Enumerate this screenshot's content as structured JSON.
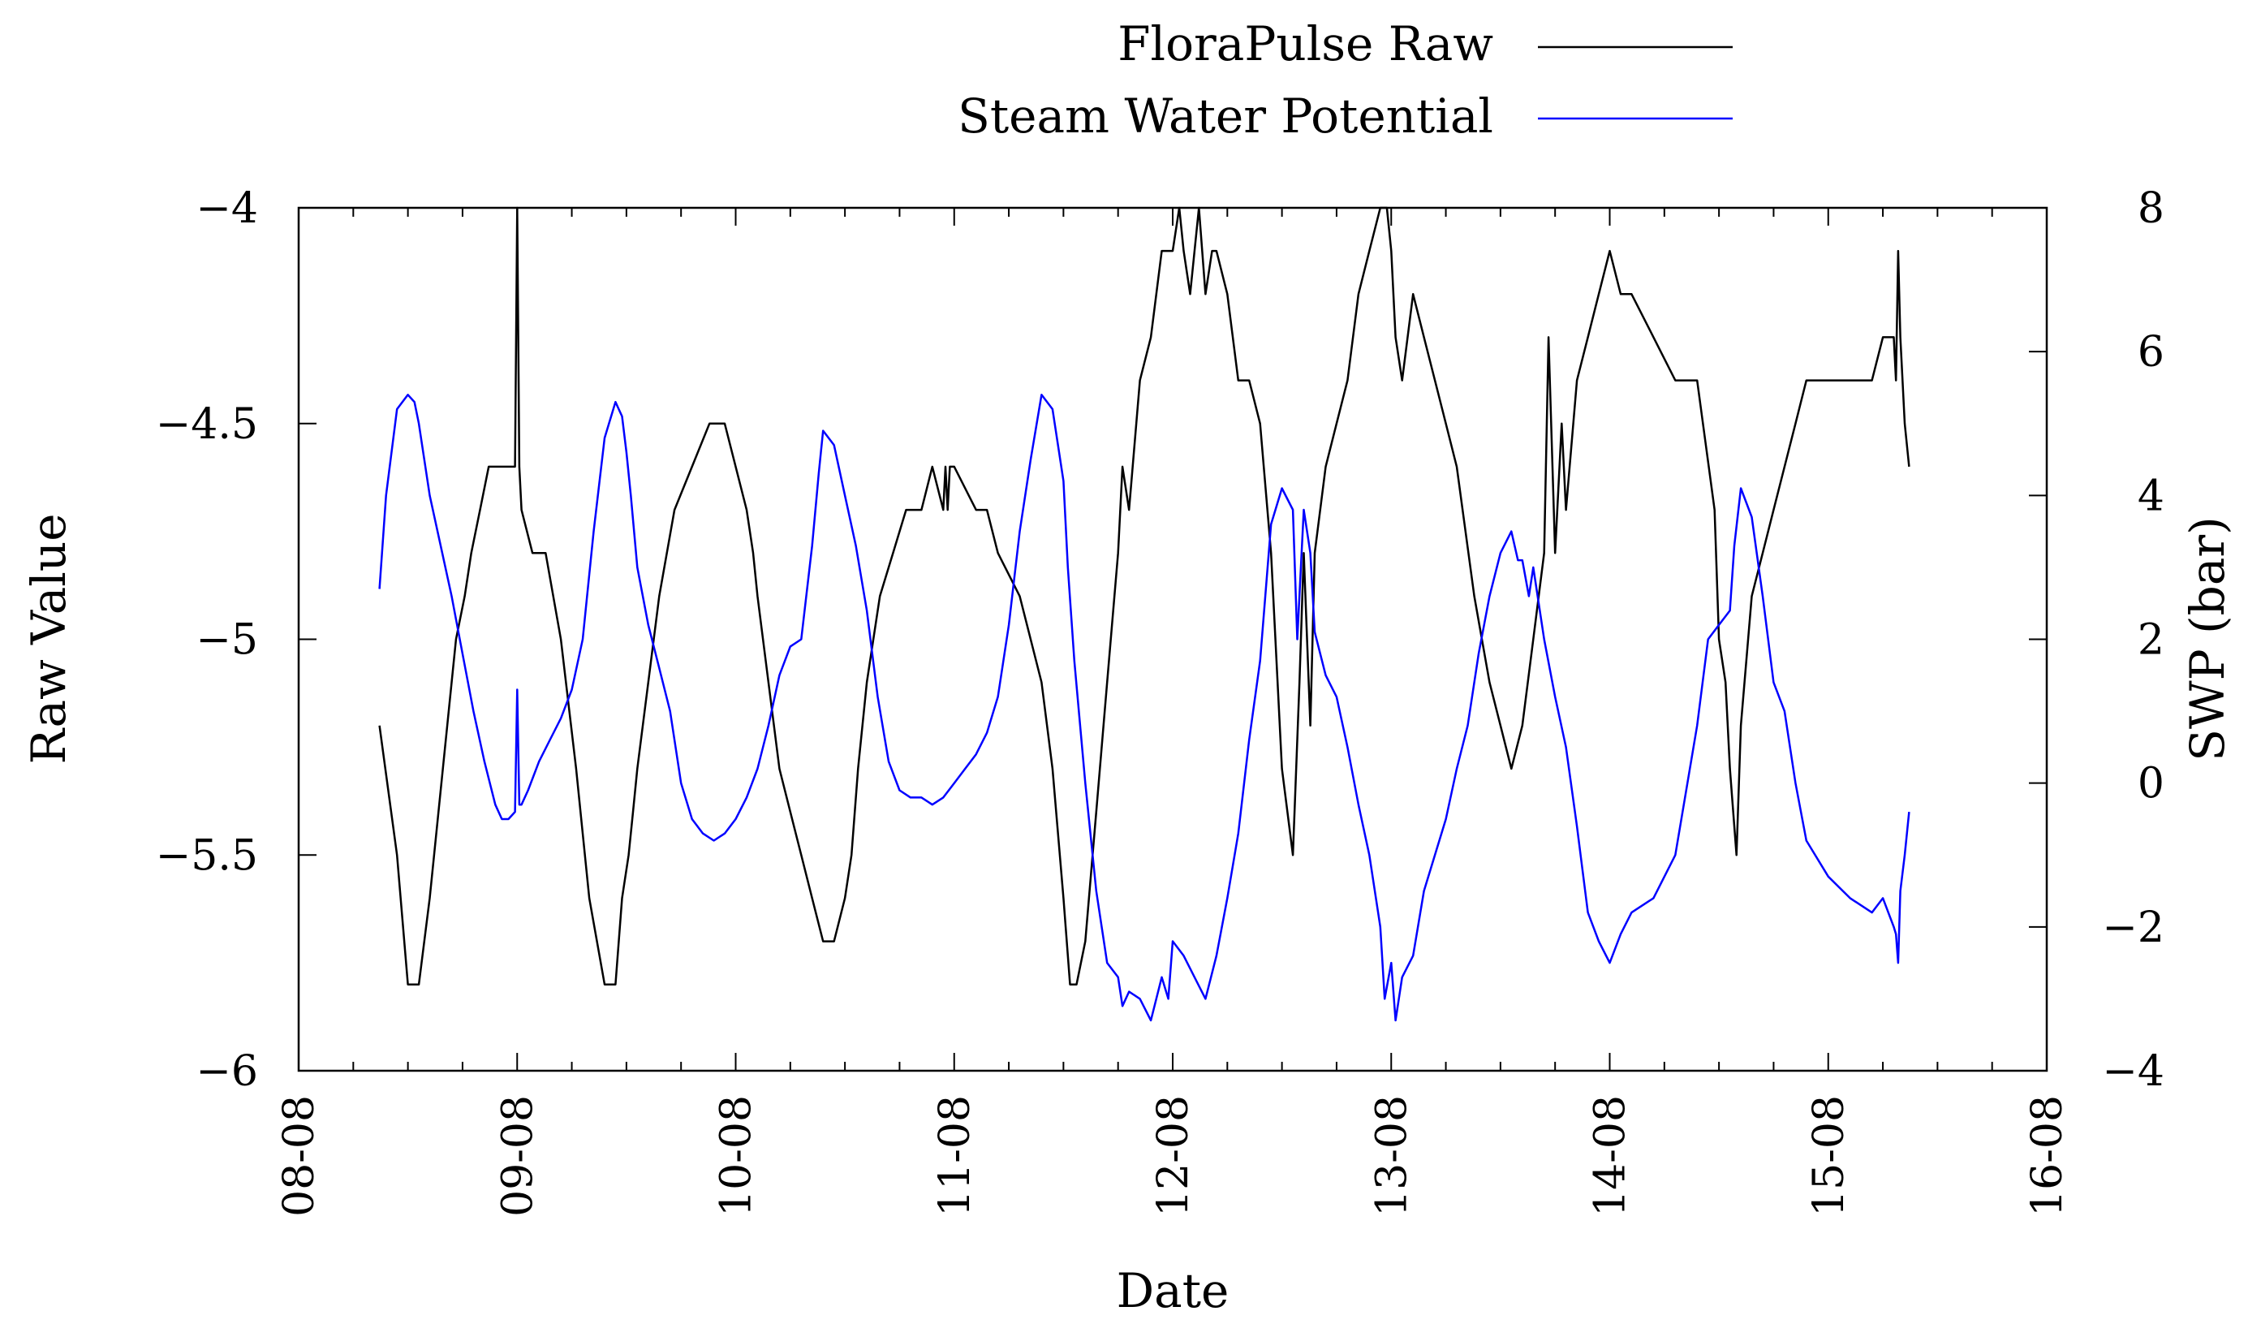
{
  "chart_data": {
    "type": "line",
    "title": "",
    "xlabel": "Date",
    "ylabel_left": "Raw Value",
    "ylabel_right": "SWP (bar)",
    "xlim": [
      0,
      8
    ],
    "ylim_left": [
      -6,
      -4
    ],
    "ylim_right": [
      -4,
      8
    ],
    "x_ticks": [
      {
        "value": 0,
        "label": "08-08"
      },
      {
        "value": 1,
        "label": "09-08"
      },
      {
        "value": 2,
        "label": "10-08"
      },
      {
        "value": 3,
        "label": "11-08"
      },
      {
        "value": 4,
        "label": "12-08"
      },
      {
        "value": 5,
        "label": "13-08"
      },
      {
        "value": 6,
        "label": "14-08"
      },
      {
        "value": 7,
        "label": "15-08"
      },
      {
        "value": 8,
        "label": "16-08"
      }
    ],
    "y_ticks_left": [
      {
        "value": -4,
        "label": "−4"
      },
      {
        "value": -4.5,
        "label": "−4.5"
      },
      {
        "value": -5,
        "label": "−5"
      },
      {
        "value": -5.5,
        "label": "−5.5"
      },
      {
        "value": -6,
        "label": "−6"
      }
    ],
    "y_ticks_right": [
      {
        "value": 8,
        "label": "8"
      },
      {
        "value": 6,
        "label": "6"
      },
      {
        "value": 4,
        "label": "4"
      },
      {
        "value": 2,
        "label": "2"
      },
      {
        "value": 0,
        "label": "0"
      },
      {
        "value": -2,
        "label": "−2"
      },
      {
        "value": -4,
        "label": "−4"
      }
    ],
    "legend_position": "top-center",
    "series": [
      {
        "name": "FloraPulse Raw",
        "axis": "left",
        "color": "#000000",
        "x": [
          0.37,
          0.45,
          0.5,
          0.55,
          0.6,
          0.66,
          0.7,
          0.72,
          0.76,
          0.79,
          0.83,
          0.87,
          0.9,
          0.95,
          0.99,
          1.0,
          1.01,
          1.02,
          1.07,
          1.13,
          1.2,
          1.27,
          1.33,
          1.4,
          1.45,
          1.48,
          1.51,
          1.53,
          1.55,
          1.6,
          1.65,
          1.72,
          1.8,
          1.88,
          1.95,
          2.0,
          2.05,
          2.08,
          2.1,
          2.15,
          2.2,
          2.25,
          2.3,
          2.35,
          2.4,
          2.45,
          2.5,
          2.53,
          2.56,
          2.6,
          2.66,
          2.72,
          2.78,
          2.85,
          2.9,
          2.95,
          2.96,
          2.97,
          2.98,
          2.99,
          3.0,
          3.1,
          3.15,
          3.2,
          3.3,
          3.4,
          3.45,
          3.5,
          3.53,
          3.56,
          3.6,
          3.65,
          3.7,
          3.75,
          3.77,
          3.8,
          3.85,
          3.9,
          3.95,
          4.0,
          4.03,
          4.05,
          4.08,
          4.1,
          4.12,
          4.15,
          4.18,
          4.2,
          4.25,
          4.3,
          4.35,
          4.4,
          4.45,
          4.5,
          4.55,
          4.58,
          4.6,
          4.63,
          4.65,
          4.7,
          4.75,
          4.8,
          4.85,
          4.9,
          4.95,
          4.98,
          5.0,
          5.02,
          5.05,
          5.1,
          5.15,
          5.2,
          5.25,
          5.3,
          5.38,
          5.45,
          5.5,
          5.55,
          5.6,
          5.65,
          5.7,
          5.72,
          5.75,
          5.78,
          5.8,
          5.85,
          5.9,
          5.95,
          6.0,
          6.05,
          6.1,
          6.2,
          6.3,
          6.4,
          6.48,
          6.5,
          6.53,
          6.55,
          6.58,
          6.6,
          6.65,
          6.7,
          6.75,
          6.8,
          6.85,
          6.9,
          7.0,
          7.1,
          7.2,
          7.25,
          7.3,
          7.31,
          7.32,
          7.33,
          7.35,
          7.37
        ],
        "values": [
          -5.2,
          -5.5,
          -5.8,
          -5.8,
          -5.6,
          -5.3,
          -5.1,
          -5.0,
          -4.9,
          -4.8,
          -4.7,
          -4.6,
          -4.6,
          -4.6,
          -4.6,
          -4.0,
          -4.6,
          -4.7,
          -4.8,
          -4.8,
          -5.0,
          -5.3,
          -5.6,
          -5.8,
          -5.8,
          -5.6,
          -5.5,
          -5.4,
          -5.3,
          -5.1,
          -4.9,
          -4.7,
          -4.6,
          -4.5,
          -4.5,
          -4.6,
          -4.7,
          -4.8,
          -4.9,
          -5.1,
          -5.3,
          -5.4,
          -5.5,
          -5.6,
          -5.7,
          -5.7,
          -5.6,
          -5.5,
          -5.3,
          -5.1,
          -4.9,
          -4.8,
          -4.7,
          -4.7,
          -4.6,
          -4.7,
          -4.6,
          -4.7,
          -4.6,
          -4.6,
          -4.6,
          -4.7,
          -4.7,
          -4.8,
          -4.9,
          -5.1,
          -5.3,
          -5.6,
          -5.8,
          -5.8,
          -5.7,
          -5.4,
          -5.1,
          -4.8,
          -4.6,
          -4.7,
          -4.4,
          -4.3,
          -4.1,
          -4.1,
          -4.0,
          -4.1,
          -4.2,
          -4.1,
          -4.0,
          -4.2,
          -4.1,
          -4.1,
          -4.2,
          -4.4,
          -4.4,
          -4.5,
          -4.8,
          -5.3,
          -5.5,
          -5.1,
          -4.8,
          -5.2,
          -4.8,
          -4.6,
          -4.5,
          -4.4,
          -4.2,
          -4.1,
          -4.0,
          -4.0,
          -4.1,
          -4.3,
          -4.4,
          -4.2,
          -4.3,
          -4.4,
          -4.5,
          -4.6,
          -4.9,
          -5.1,
          -5.2,
          -5.3,
          -5.2,
          -5.0,
          -4.8,
          -4.3,
          -4.8,
          -4.5,
          -4.7,
          -4.4,
          -4.3,
          -4.2,
          -4.1,
          -4.2,
          -4.2,
          -4.3,
          -4.4,
          -4.4,
          -4.7,
          -5.0,
          -5.1,
          -5.3,
          -5.5,
          -5.2,
          -4.9,
          -4.8,
          -4.7,
          -4.6,
          -4.5,
          -4.4,
          -4.4,
          -4.4,
          -4.4,
          -4.3,
          -4.3,
          -4.4,
          -4.1,
          -4.3,
          -4.5,
          -4.6
        ]
      },
      {
        "name": "Steam Water Potential",
        "axis": "right",
        "color": "#0000ff",
        "x": [
          0.37,
          0.4,
          0.45,
          0.5,
          0.53,
          0.55,
          0.6,
          0.65,
          0.7,
          0.75,
          0.8,
          0.85,
          0.9,
          0.93,
          0.96,
          0.99,
          1.0,
          1.01,
          1.02,
          1.05,
          1.1,
          1.15,
          1.2,
          1.25,
          1.3,
          1.35,
          1.4,
          1.45,
          1.48,
          1.5,
          1.52,
          1.55,
          1.6,
          1.65,
          1.7,
          1.75,
          1.8,
          1.85,
          1.9,
          1.95,
          2.0,
          2.05,
          2.1,
          2.15,
          2.2,
          2.25,
          2.3,
          2.35,
          2.38,
          2.4,
          2.45,
          2.5,
          2.55,
          2.6,
          2.65,
          2.7,
          2.75,
          2.8,
          2.85,
          2.9,
          2.95,
          3.0,
          3.05,
          3.1,
          3.15,
          3.2,
          3.25,
          3.3,
          3.35,
          3.4,
          3.45,
          3.5,
          3.52,
          3.55,
          3.6,
          3.65,
          3.7,
          3.75,
          3.77,
          3.8,
          3.85,
          3.9,
          3.95,
          3.98,
          4.0,
          4.05,
          4.1,
          4.15,
          4.2,
          4.25,
          4.3,
          4.35,
          4.4,
          4.45,
          4.5,
          4.55,
          4.57,
          4.6,
          4.63,
          4.65,
          4.7,
          4.75,
          4.8,
          4.85,
          4.9,
          4.95,
          4.97,
          5.0,
          5.02,
          5.05,
          5.1,
          5.15,
          5.2,
          5.25,
          5.3,
          5.35,
          5.4,
          5.45,
          5.5,
          5.55,
          5.58,
          5.6,
          5.63,
          5.65,
          5.7,
          5.75,
          5.8,
          5.85,
          5.9,
          5.95,
          6.0,
          6.05,
          6.1,
          6.2,
          6.3,
          6.4,
          6.45,
          6.5,
          6.55,
          6.57,
          6.6,
          6.65,
          6.7,
          6.75,
          6.8,
          6.85,
          6.9,
          7.0,
          7.1,
          7.2,
          7.25,
          7.3,
          7.31,
          7.32,
          7.33,
          7.35,
          7.37
        ],
        "values": [
          2.7,
          4.0,
          5.2,
          5.4,
          5.3,
          5.0,
          4.0,
          3.3,
          2.6,
          1.8,
          1.0,
          0.3,
          -0.3,
          -0.5,
          -0.5,
          -0.4,
          1.3,
          -0.3,
          -0.3,
          -0.1,
          0.3,
          0.6,
          0.9,
          1.3,
          2.0,
          3.5,
          4.8,
          5.3,
          5.1,
          4.6,
          4.0,
          3.0,
          2.2,
          1.6,
          1.0,
          0.0,
          -0.5,
          -0.7,
          -0.8,
          -0.7,
          -0.5,
          -0.2,
          0.2,
          0.8,
          1.5,
          1.9,
          2.0,
          3.3,
          4.3,
          4.9,
          4.7,
          4.0,
          3.3,
          2.4,
          1.2,
          0.3,
          -0.1,
          -0.2,
          -0.2,
          -0.3,
          -0.2,
          0.0,
          0.2,
          0.4,
          0.7,
          1.2,
          2.2,
          3.5,
          4.5,
          5.4,
          5.2,
          4.2,
          3.0,
          1.7,
          0.0,
          -1.5,
          -2.5,
          -2.7,
          -3.1,
          -2.9,
          -3.0,
          -3.3,
          -2.7,
          -3.0,
          -2.2,
          -2.4,
          -2.7,
          -3.0,
          -2.4,
          -1.6,
          -0.7,
          0.6,
          1.7,
          3.6,
          4.1,
          3.8,
          2.0,
          3.8,
          3.2,
          2.1,
          1.5,
          1.2,
          0.5,
          -0.3,
          -1.0,
          -2.0,
          -3.0,
          -2.5,
          -3.3,
          -2.7,
          -2.4,
          -1.5,
          -1.0,
          -0.5,
          0.2,
          0.8,
          1.8,
          2.6,
          3.2,
          3.5,
          3.1,
          3.1,
          2.6,
          3.0,
          2.0,
          1.2,
          0.5,
          -0.6,
          -1.8,
          -2.2,
          -2.5,
          -2.1,
          -1.8,
          -1.6,
          -1.0,
          0.8,
          2.0,
          2.2,
          2.4,
          3.3,
          4.1,
          3.7,
          2.6,
          1.4,
          1.0,
          0.0,
          -0.8,
          -1.3,
          -1.6,
          -1.8,
          -1.6,
          -2.0,
          -2.1,
          -2.5,
          -1.5,
          -1.0,
          -0.4
        ]
      }
    ]
  }
}
